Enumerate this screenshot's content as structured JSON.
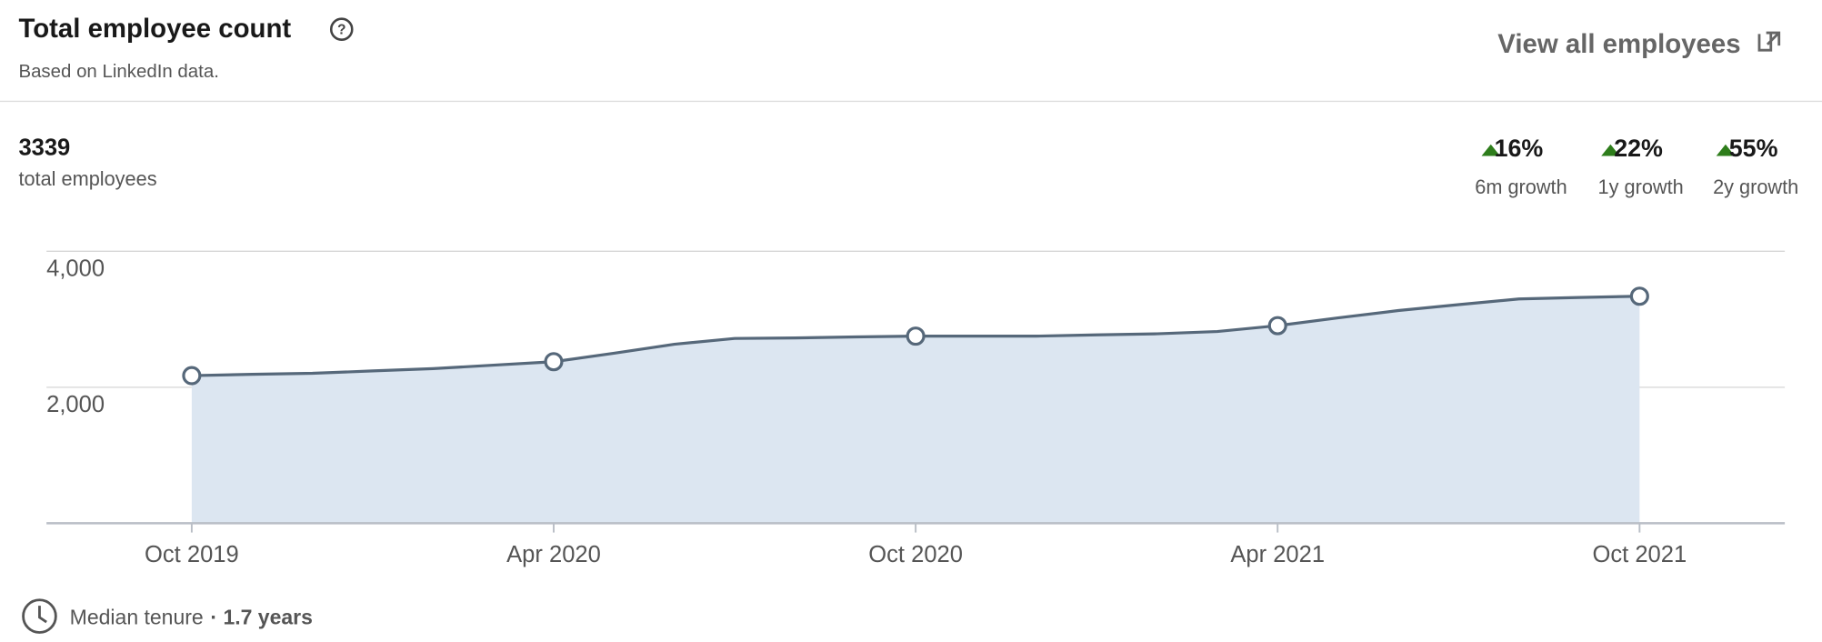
{
  "header": {
    "title": "Total employee count",
    "subtitle": "Based on LinkedIn data.",
    "link": "View all employees"
  },
  "summary": {
    "total": "3339",
    "total_label": "total employees",
    "growth": [
      {
        "change": "16%",
        "period": "6m growth"
      },
      {
        "change": "22%",
        "period": "1y growth"
      },
      {
        "change": "55%",
        "period": "2y growth"
      }
    ]
  },
  "chart_data": {
    "type": "area",
    "categories": [
      "Oct 2019",
      null,
      null,
      null,
      null,
      null,
      "Apr 2020",
      null,
      null,
      null,
      null,
      null,
      "Oct 2020",
      null,
      null,
      null,
      null,
      null,
      "Apr 2021",
      null,
      null,
      null,
      null,
      null,
      "Oct 2021"
    ],
    "values": [
      2171,
      2190,
      2205,
      2240,
      2274,
      2325,
      2376,
      2500,
      2632,
      2718,
      2725,
      2740,
      2752,
      2752,
      2752,
      2770,
      2786,
      2820,
      2906,
      3020,
      3128,
      3215,
      3299,
      3320,
      3339
    ],
    "color": "#56687a",
    "fill": "#dce6f1",
    "ylim": [
      0,
      4000
    ],
    "yticks": [
      {
        "value": 2000,
        "label": "2,000"
      },
      {
        "value": 4000,
        "label": "4,000"
      }
    ],
    "grid": true
  },
  "footer": {
    "label": "Median tenure",
    "value": "· 1.7 years"
  }
}
